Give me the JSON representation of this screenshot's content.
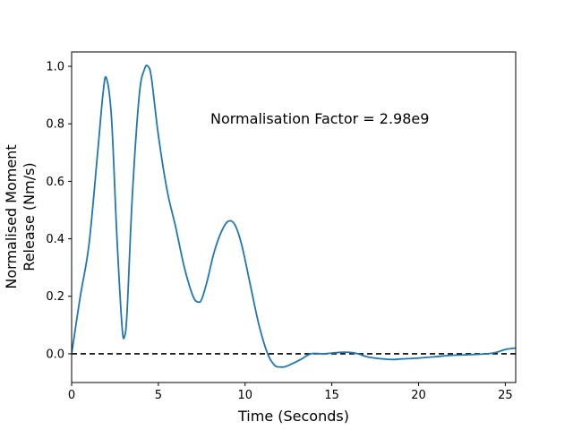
{
  "chart_data": {
    "type": "line",
    "title": "",
    "xlabel": "Time (Seconds)",
    "ylabel_lines": [
      "Normalised Moment",
      "Release (Nm/s)"
    ],
    "xlim": [
      0,
      25.6
    ],
    "ylim": [
      -0.1,
      1.05
    ],
    "xticks": [
      0,
      5,
      10,
      15,
      20,
      25
    ],
    "yticks": [
      0.0,
      0.2,
      0.4,
      0.6,
      0.8,
      1.0
    ],
    "xtick_labels": [
      "0",
      "5",
      "10",
      "15",
      "20",
      "25"
    ],
    "ytick_labels": [
      "0.0",
      "0.2",
      "0.4",
      "0.6",
      "0.8",
      "1.0"
    ],
    "grid": false,
    "annotation": "Normalisation Factor = 2.98e9",
    "series": [
      {
        "color": "#1f77b4",
        "x": [
          0,
          0.5,
          1.0,
          1.5,
          1.8,
          2.0,
          2.3,
          2.6,
          2.9,
          3.05,
          3.2,
          3.5,
          3.9,
          4.2,
          4.4,
          4.6,
          5.0,
          5.5,
          6.0,
          6.5,
          7.0,
          7.3,
          7.5,
          7.8,
          8.2,
          8.6,
          9.0,
          9.4,
          9.8,
          10.3,
          10.8,
          11.3,
          11.7,
          12.0,
          12.3,
          12.7,
          13.2,
          13.8,
          14.5,
          15.5,
          16.0,
          16.5,
          17.0,
          17.5,
          18.0,
          18.5,
          19.0,
          20.0,
          21.0,
          22.0,
          23.0,
          24.0,
          24.5,
          25.0,
          25.6
        ],
        "y": [
          0.0,
          0.2,
          0.38,
          0.7,
          0.9,
          0.96,
          0.82,
          0.42,
          0.1,
          0.06,
          0.15,
          0.55,
          0.9,
          0.99,
          1.0,
          0.96,
          0.76,
          0.57,
          0.44,
          0.3,
          0.2,
          0.18,
          0.19,
          0.25,
          0.35,
          0.42,
          0.46,
          0.45,
          0.38,
          0.24,
          0.1,
          0.0,
          -0.04,
          -0.046,
          -0.045,
          -0.035,
          -0.02,
          0.0,
          0.0,
          0.005,
          0.005,
          0.0,
          -0.01,
          -0.015,
          -0.018,
          -0.02,
          -0.018,
          -0.015,
          -0.01,
          -0.005,
          -0.003,
          0.0,
          0.005,
          0.015,
          0.02
        ]
      }
    ],
    "reference_line": {
      "y": 0.0,
      "style": "dashed",
      "color": "#000000"
    }
  }
}
